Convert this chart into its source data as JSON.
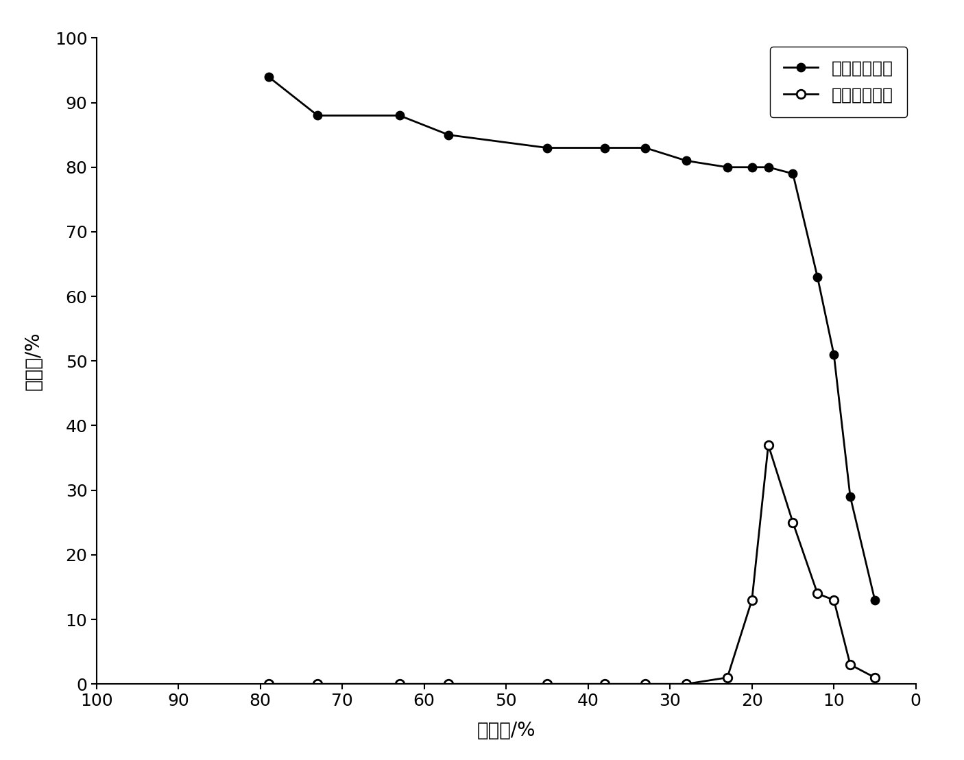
{
  "series1_name": "冻存前存活率",
  "series2_name": "冻存后存活率",
  "series1_x": [
    79,
    73,
    63,
    57,
    45,
    38,
    33,
    28,
    23,
    20,
    18,
    15,
    12,
    10,
    8,
    5
  ],
  "series1_y": [
    94,
    88,
    88,
    85,
    83,
    83,
    83,
    81,
    80,
    80,
    80,
    79,
    63,
    51,
    29,
    13
  ],
  "series2_x": [
    79,
    73,
    63,
    57,
    45,
    38,
    33,
    28,
    23,
    20,
    18,
    15,
    12,
    10,
    8,
    5
  ],
  "series2_y": [
    0,
    0,
    0,
    0,
    0,
    0,
    0,
    0,
    1,
    13,
    37,
    25,
    14,
    13,
    3,
    1
  ],
  "xlabel": "含水量/%",
  "ylabel": "存活率/%",
  "xlim": [
    100,
    0
  ],
  "ylim": [
    0,
    100
  ],
  "xticks": [
    100,
    90,
    80,
    70,
    60,
    50,
    40,
    30,
    20,
    10,
    0
  ],
  "yticks": [
    0,
    10,
    20,
    30,
    40,
    50,
    60,
    70,
    80,
    90,
    100
  ],
  "legend_loc": "upper right",
  "line_color": "#000000",
  "bg_color": "#ffffff",
  "marker_size": 9,
  "linewidth": 2,
  "font_size_label": 20,
  "font_size_tick": 18,
  "font_size_legend": 18
}
